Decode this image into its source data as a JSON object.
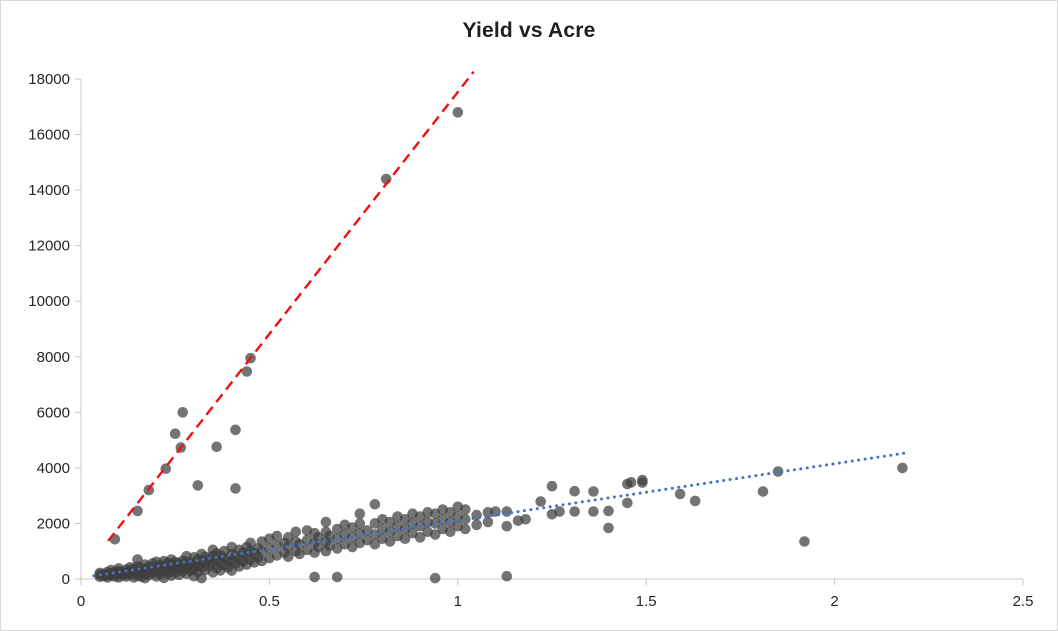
{
  "chart": {
    "title": "Yield vs Acre"
  },
  "chart_data": {
    "type": "scatter",
    "title": "Yield vs Acre",
    "xlabel": "",
    "ylabel": "",
    "xlim": [
      0,
      2.5
    ],
    "ylim": [
      0,
      18000
    ],
    "grid": false,
    "legend": "none",
    "axis_color": "#c8c8c8",
    "tick_label_color": "#262626",
    "point_color": "#3f3f3f",
    "point_opacity": 0.72,
    "x_ticks": [
      {
        "value": 0,
        "label": "0"
      },
      {
        "value": 0.5,
        "label": "0.5"
      },
      {
        "value": 1,
        "label": "1"
      },
      {
        "value": 1.5,
        "label": "1.5"
      },
      {
        "value": 2,
        "label": "2"
      },
      {
        "value": 2.5,
        "label": "2.5"
      }
    ],
    "y_ticks": [
      {
        "value": 0,
        "label": "0"
      },
      {
        "value": 2000,
        "label": "2000"
      },
      {
        "value": 4000,
        "label": "4000"
      },
      {
        "value": 6000,
        "label": "6000"
      },
      {
        "value": 8000,
        "label": "8000"
      },
      {
        "value": 10000,
        "label": "10000"
      },
      {
        "value": 12000,
        "label": "12000"
      },
      {
        "value": 14000,
        "label": "14000"
      },
      {
        "value": 16000,
        "label": "16000"
      },
      {
        "value": 18000,
        "label": "18000"
      }
    ],
    "trendlines": [
      {
        "name": "steep-red-dashed",
        "style": "dashed",
        "color": "#ee1111",
        "width": 2.4,
        "x1": 0.072,
        "y1": 1370,
        "x2": 1.042,
        "y2": 18260
      },
      {
        "name": "fit-blue-dotted",
        "style": "dotted",
        "color": "#4472c4",
        "width": 3,
        "x1": 0.034,
        "y1": 115,
        "x2": 2.19,
        "y2": 4540
      }
    ],
    "points": [
      [
        0.05,
        80
      ],
      [
        0.05,
        150
      ],
      [
        0.05,
        220
      ],
      [
        0.06,
        100
      ],
      [
        0.06,
        180
      ],
      [
        0.07,
        60
      ],
      [
        0.07,
        140
      ],
      [
        0.07,
        250
      ],
      [
        0.08,
        120
      ],
      [
        0.08,
        200
      ],
      [
        0.08,
        320
      ],
      [
        0.09,
        90
      ],
      [
        0.09,
        260
      ],
      [
        0.1,
        60
      ],
      [
        0.1,
        160
      ],
      [
        0.1,
        280
      ],
      [
        0.1,
        380
      ],
      [
        0.11,
        130
      ],
      [
        0.11,
        240
      ],
      [
        0.12,
        90
      ],
      [
        0.12,
        200
      ],
      [
        0.12,
        340
      ],
      [
        0.13,
        160
      ],
      [
        0.13,
        280
      ],
      [
        0.13,
        420
      ],
      [
        0.14,
        60
      ],
      [
        0.14,
        230
      ],
      [
        0.14,
        360
      ],
      [
        0.15,
        120
      ],
      [
        0.15,
        300
      ],
      [
        0.15,
        450
      ],
      [
        0.15,
        700
      ],
      [
        0.16,
        80
      ],
      [
        0.16,
        240
      ],
      [
        0.16,
        400
      ],
      [
        0.17,
        30
      ],
      [
        0.17,
        180
      ],
      [
        0.17,
        330
      ],
      [
        0.17,
        520
      ],
      [
        0.18,
        140
      ],
      [
        0.18,
        290
      ],
      [
        0.18,
        450
      ],
      [
        0.19,
        220
      ],
      [
        0.19,
        380
      ],
      [
        0.19,
        560
      ],
      [
        0.2,
        90
      ],
      [
        0.2,
        260
      ],
      [
        0.2,
        430
      ],
      [
        0.2,
        620
      ],
      [
        0.21,
        170
      ],
      [
        0.21,
        350
      ],
      [
        0.21,
        500
      ],
      [
        0.22,
        40
      ],
      [
        0.22,
        280
      ],
      [
        0.22,
        460
      ],
      [
        0.22,
        640
      ],
      [
        0.23,
        200
      ],
      [
        0.23,
        390
      ],
      [
        0.23,
        580
      ],
      [
        0.24,
        120
      ],
      [
        0.24,
        310
      ],
      [
        0.24,
        520
      ],
      [
        0.24,
        700
      ],
      [
        0.25,
        230
      ],
      [
        0.25,
        420
      ],
      [
        0.25,
        610
      ],
      [
        0.26,
        150
      ],
      [
        0.26,
        360
      ],
      [
        0.26,
        560
      ],
      [
        0.27,
        280
      ],
      [
        0.27,
        470
      ],
      [
        0.27,
        660
      ],
      [
        0.28,
        190
      ],
      [
        0.28,
        400
      ],
      [
        0.28,
        610
      ],
      [
        0.28,
        820
      ],
      [
        0.29,
        300
      ],
      [
        0.29,
        520
      ],
      [
        0.3,
        100
      ],
      [
        0.3,
        380
      ],
      [
        0.3,
        580
      ],
      [
        0.3,
        780
      ],
      [
        0.31,
        250
      ],
      [
        0.31,
        480
      ],
      [
        0.31,
        700
      ],
      [
        0.32,
        30
      ],
      [
        0.32,
        420
      ],
      [
        0.32,
        640
      ],
      [
        0.32,
        900
      ],
      [
        0.33,
        330
      ],
      [
        0.33,
        560
      ],
      [
        0.33,
        800
      ],
      [
        0.34,
        460
      ],
      [
        0.34,
        700
      ],
      [
        0.35,
        240
      ],
      [
        0.35,
        560
      ],
      [
        0.35,
        820
      ],
      [
        0.35,
        1050
      ],
      [
        0.36,
        400
      ],
      [
        0.36,
        680
      ],
      [
        0.36,
        920
      ],
      [
        0.37,
        310
      ],
      [
        0.37,
        600
      ],
      [
        0.37,
        850
      ],
      [
        0.38,
        500
      ],
      [
        0.38,
        760
      ],
      [
        0.38,
        1000
      ],
      [
        0.39,
        420
      ],
      [
        0.39,
        700
      ],
      [
        0.4,
        300
      ],
      [
        0.4,
        640
      ],
      [
        0.4,
        900
      ],
      [
        0.4,
        1150
      ],
      [
        0.41,
        550
      ],
      [
        0.41,
        820
      ],
      [
        0.42,
        450
      ],
      [
        0.42,
        760
      ],
      [
        0.42,
        1050
      ],
      [
        0.43,
        640
      ],
      [
        0.43,
        950
      ],
      [
        0.44,
        520
      ],
      [
        0.44,
        850
      ],
      [
        0.44,
        1150
      ],
      [
        0.45,
        700
      ],
      [
        0.45,
        1000
      ],
      [
        0.45,
        1300
      ],
      [
        0.46,
        600
      ],
      [
        0.46,
        920
      ],
      [
        0.47,
        780
      ],
      [
        0.47,
        1100
      ],
      [
        0.48,
        650
      ],
      [
        0.48,
        1000
      ],
      [
        0.48,
        1350
      ],
      [
        0.5,
        750
      ],
      [
        0.5,
        1100
      ],
      [
        0.5,
        1450
      ],
      [
        0.52,
        850
      ],
      [
        0.52,
        1200
      ],
      [
        0.52,
        1550
      ],
      [
        0.54,
        950
      ],
      [
        0.54,
        1300
      ],
      [
        0.55,
        800
      ],
      [
        0.55,
        1150
      ],
      [
        0.55,
        1500
      ],
      [
        0.57,
        1000
      ],
      [
        0.57,
        1350
      ],
      [
        0.57,
        1700
      ],
      [
        0.58,
        900
      ],
      [
        0.58,
        1250
      ],
      [
        0.6,
        1050
      ],
      [
        0.6,
        1400
      ],
      [
        0.6,
        1750
      ],
      [
        0.62,
        70
      ],
      [
        0.62,
        950
      ],
      [
        0.62,
        1300
      ],
      [
        0.62,
        1650
      ],
      [
        0.63,
        1150
      ],
      [
        0.63,
        1500
      ],
      [
        0.65,
        1000
      ],
      [
        0.65,
        1350
      ],
      [
        0.65,
        1700
      ],
      [
        0.65,
        2050
      ],
      [
        0.66,
        1200
      ],
      [
        0.66,
        1550
      ],
      [
        0.68,
        70
      ],
      [
        0.68,
        1100
      ],
      [
        0.68,
        1450
      ],
      [
        0.68,
        1800
      ],
      [
        0.7,
        1250
      ],
      [
        0.7,
        1600
      ],
      [
        0.7,
        1950
      ],
      [
        0.72,
        1150
      ],
      [
        0.72,
        1500
      ],
      [
        0.72,
        1850
      ],
      [
        0.74,
        1300
      ],
      [
        0.74,
        1650
      ],
      [
        0.74,
        2000
      ],
      [
        0.74,
        2350
      ],
      [
        0.76,
        1400
      ],
      [
        0.76,
        1750
      ],
      [
        0.78,
        1250
      ],
      [
        0.78,
        1600
      ],
      [
        0.78,
        2000
      ],
      [
        0.78,
        2690
      ],
      [
        0.8,
        1450
      ],
      [
        0.8,
        1800
      ],
      [
        0.8,
        2150
      ],
      [
        0.82,
        1350
      ],
      [
        0.82,
        1700
      ],
      [
        0.82,
        2050
      ],
      [
        0.84,
        1550
      ],
      [
        0.84,
        1900
      ],
      [
        0.84,
        2250
      ],
      [
        0.86,
        1450
      ],
      [
        0.86,
        1800
      ],
      [
        0.86,
        2150
      ],
      [
        0.88,
        1650
      ],
      [
        0.88,
        2000
      ],
      [
        0.88,
        2350
      ],
      [
        0.9,
        1500
      ],
      [
        0.9,
        1900
      ],
      [
        0.9,
        2250
      ],
      [
        0.92,
        1700
      ],
      [
        0.92,
        2050
      ],
      [
        0.92,
        2400
      ],
      [
        0.94,
        30
      ],
      [
        0.94,
        1600
      ],
      [
        0.94,
        2000
      ],
      [
        0.94,
        2350
      ],
      [
        0.96,
        1800
      ],
      [
        0.96,
        2150
      ],
      [
        0.96,
        2500
      ],
      [
        0.98,
        1700
      ],
      [
        0.98,
        2050
      ],
      [
        0.98,
        2400
      ],
      [
        1.0,
        1900
      ],
      [
        1.0,
        2250
      ],
      [
        1.0,
        2600
      ],
      [
        1.02,
        1800
      ],
      [
        1.02,
        2150
      ],
      [
        1.02,
        2500
      ],
      [
        1.05,
        1950
      ],
      [
        1.05,
        2300
      ],
      [
        1.08,
        2050
      ],
      [
        1.08,
        2400
      ],
      [
        1.1,
        2430
      ],
      [
        1.13,
        100
      ],
      [
        1.13,
        1900
      ],
      [
        1.13,
        2430
      ],
      [
        1.16,
        2100
      ],
      [
        1.18,
        2150
      ],
      [
        1.22,
        2790
      ],
      [
        1.25,
        2330
      ],
      [
        1.25,
        3340
      ],
      [
        1.27,
        2430
      ],
      [
        1.31,
        2430
      ],
      [
        1.31,
        3160
      ],
      [
        1.36,
        2430
      ],
      [
        1.36,
        3150
      ],
      [
        1.4,
        1840
      ],
      [
        1.4,
        2450
      ],
      [
        1.45,
        2740
      ],
      [
        1.45,
        3420
      ],
      [
        1.46,
        3480
      ],
      [
        1.49,
        3470
      ],
      [
        1.49,
        3560
      ],
      [
        1.59,
        3060
      ],
      [
        1.63,
        2810
      ],
      [
        1.81,
        3150
      ],
      [
        1.85,
        3870
      ],
      [
        1.92,
        1350
      ],
      [
        2.18,
        4000
      ],
      [
        0.09,
        1430
      ],
      [
        0.15,
        2450
      ],
      [
        0.18,
        3200
      ],
      [
        0.225,
        3970
      ],
      [
        0.265,
        4730
      ],
      [
        0.25,
        5230
      ],
      [
        0.27,
        6000
      ],
      [
        0.31,
        3370
      ],
      [
        0.36,
        4760
      ],
      [
        0.41,
        5370
      ],
      [
        0.41,
        3260
      ],
      [
        0.44,
        7470
      ],
      [
        0.45,
        7950
      ],
      [
        0.81,
        14400
      ],
      [
        1.0,
        16800
      ]
    ]
  }
}
